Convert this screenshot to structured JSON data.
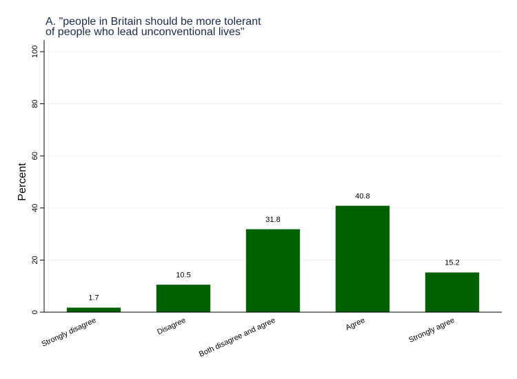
{
  "chart_data": {
    "type": "bar",
    "title": "A. \"people in Britain should be more tolerant",
    "title_line2": "of people who lead unconventional lives\"",
    "xlabel": "",
    "ylabel": "Percent",
    "ylim": [
      0,
      100
    ],
    "yticks": [
      0,
      20,
      40,
      60,
      80,
      100
    ],
    "grid": true,
    "categories": [
      "Strongly disagree",
      "Disagree",
      "Both disagree and agree",
      "Agree",
      "Strongly agree"
    ],
    "values": [
      1.7,
      10.5,
      31.8,
      40.8,
      15.2
    ],
    "value_labels": [
      "1.7",
      "10.5",
      "31.8",
      "40.8",
      "15.2"
    ],
    "bar_color": "#006000",
    "title_color": "#1a2b4a"
  }
}
